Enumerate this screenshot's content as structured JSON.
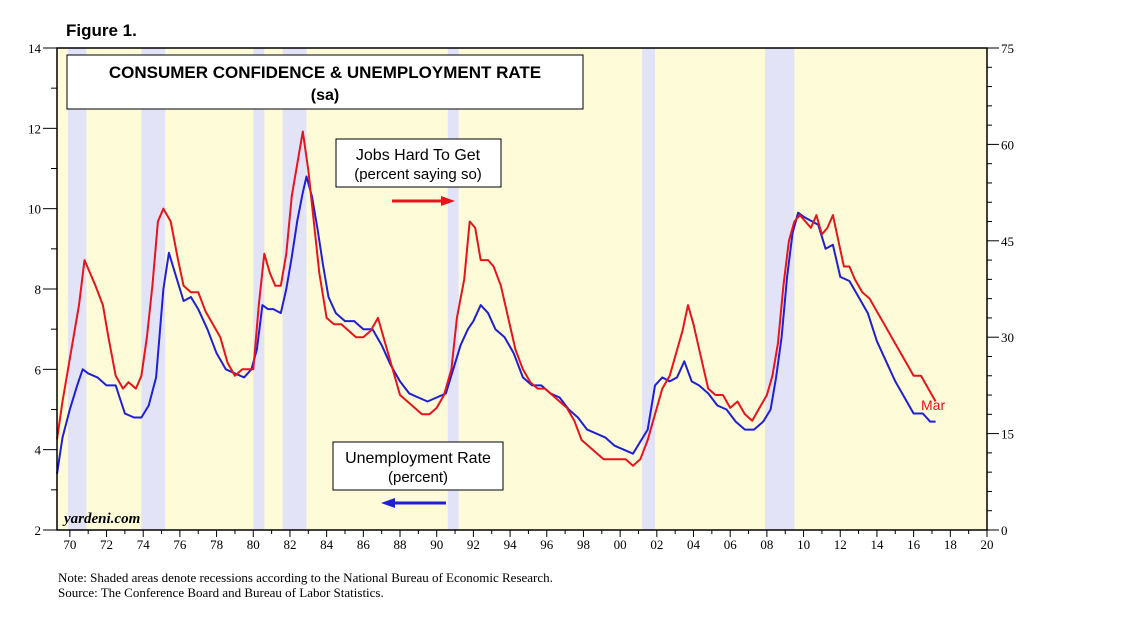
{
  "figure_label": "Figure 1.",
  "colors": {
    "unemployment": "#1f1fd6",
    "jobs_hard": "#e8141b",
    "recession": "#e3e3f8",
    "plot_bg": "#fdfbd8",
    "axis": "#000000"
  },
  "notes": {
    "line1": "Note: Shaded areas denote recessions according to the National Bureau of Economic Research.",
    "line2": "Source: The Conference Board and Bureau of Labor Statistics."
  },
  "chart_data": {
    "type": "line",
    "title": "CONSUMER CONFIDENCE & UNEMPLOYMENT RATE",
    "subtitle": "(sa)",
    "watermark": "yardeni.com",
    "xlim": [
      1969.3,
      2020
    ],
    "x_ticks": [
      1970,
      1972,
      1974,
      1976,
      1978,
      1980,
      1982,
      1984,
      1986,
      1988,
      1990,
      1992,
      1994,
      1996,
      1998,
      2000,
      2002,
      2004,
      2006,
      2008,
      2010,
      2012,
      2014,
      2016,
      2018,
      2020
    ],
    "x_tick_labels": [
      "70",
      "72",
      "74",
      "76",
      "78",
      "80",
      "82",
      "84",
      "86",
      "88",
      "90",
      "92",
      "94",
      "96",
      "98",
      "00",
      "02",
      "04",
      "06",
      "08",
      "10",
      "12",
      "14",
      "16",
      "18",
      "20"
    ],
    "left_axis": {
      "ylim": [
        2,
        14
      ],
      "ticks": [
        2,
        4,
        6,
        8,
        10,
        12,
        14
      ],
      "tick_labels": [
        "2",
        "4",
        "6",
        "8",
        "10",
        "12",
        "14"
      ]
    },
    "right_axis": {
      "ylim": [
        0,
        75
      ],
      "ticks": [
        0,
        15,
        30,
        45,
        60,
        75
      ],
      "tick_labels": [
        "0",
        "15",
        "30",
        "45",
        "60",
        "75"
      ]
    },
    "recessions": [
      [
        1969.9,
        1970.9
      ],
      [
        1973.9,
        1975.2
      ],
      [
        1980.0,
        1980.6
      ],
      [
        1981.6,
        1982.9
      ],
      [
        1990.6,
        1991.2
      ],
      [
        2001.2,
        2001.9
      ],
      [
        2007.9,
        2009.5
      ]
    ],
    "annotations": {
      "jobs_label_line1": "Jobs Hard To Get",
      "jobs_label_line2": "(percent saying so)",
      "unemp_label_line1": "Unemployment Rate",
      "unemp_label_line2": "(percent)",
      "end_label": "Mar"
    },
    "series": [
      {
        "name": "Unemployment Rate (percent)",
        "axis": "left",
        "x": [
          1969.3,
          1969.6,
          1970.0,
          1970.4,
          1970.7,
          1971.0,
          1971.5,
          1972.0,
          1972.5,
          1973.0,
          1973.5,
          1973.9,
          1974.3,
          1974.7,
          1975.1,
          1975.4,
          1975.8,
          1976.2,
          1976.6,
          1977.0,
          1977.5,
          1978.0,
          1978.5,
          1979.0,
          1979.5,
          1979.9,
          1980.2,
          1980.5,
          1980.8,
          1981.1,
          1981.5,
          1981.8,
          1982.1,
          1982.4,
          1982.7,
          1982.9,
          1983.2,
          1983.5,
          1983.8,
          1984.1,
          1984.5,
          1985.0,
          1985.5,
          1986.0,
          1986.5,
          1987.0,
          1987.5,
          1988.0,
          1988.5,
          1989.0,
          1989.5,
          1990.0,
          1990.5,
          1990.9,
          1991.3,
          1991.7,
          1992.0,
          1992.4,
          1992.8,
          1993.2,
          1993.7,
          1994.2,
          1994.7,
          1995.2,
          1995.7,
          1996.2,
          1996.7,
          1997.2,
          1997.7,
          1998.2,
          1998.7,
          1999.2,
          1999.7,
          2000.2,
          2000.7,
          2001.1,
          2001.5,
          2001.9,
          2002.3,
          2002.7,
          2003.1,
          2003.5,
          2003.9,
          2004.3,
          2004.8,
          2005.3,
          2005.8,
          2006.3,
          2006.8,
          2007.3,
          2007.8,
          2008.2,
          2008.5,
          2008.8,
          2009.1,
          2009.4,
          2009.7,
          2010.0,
          2010.4,
          2010.8,
          2011.2,
          2011.6,
          2012.0,
          2012.5,
          2013.0,
          2013.5,
          2014.0,
          2014.5,
          2015.0,
          2015.5,
          2016.0,
          2016.5,
          2016.9,
          2017.2
        ],
        "values": [
          3.4,
          4.3,
          5.0,
          5.6,
          6.0,
          5.9,
          5.8,
          5.6,
          5.6,
          4.9,
          4.8,
          4.8,
          5.1,
          5.8,
          8.0,
          8.9,
          8.3,
          7.7,
          7.8,
          7.5,
          7.0,
          6.4,
          6.0,
          5.9,
          5.8,
          6.0,
          6.5,
          7.6,
          7.5,
          7.5,
          7.4,
          8.0,
          8.8,
          9.7,
          10.4,
          10.8,
          10.3,
          9.5,
          8.6,
          7.8,
          7.4,
          7.2,
          7.2,
          7.0,
          7.0,
          6.6,
          6.1,
          5.7,
          5.4,
          5.3,
          5.2,
          5.3,
          5.4,
          6.0,
          6.6,
          7.0,
          7.2,
          7.6,
          7.4,
          7.0,
          6.8,
          6.4,
          5.8,
          5.6,
          5.6,
          5.4,
          5.3,
          5.0,
          4.8,
          4.5,
          4.4,
          4.3,
          4.1,
          4.0,
          3.9,
          4.2,
          4.5,
          5.6,
          5.8,
          5.7,
          5.8,
          6.2,
          5.7,
          5.6,
          5.4,
          5.1,
          5.0,
          4.7,
          4.5,
          4.5,
          4.7,
          5.0,
          5.8,
          6.8,
          8.3,
          9.4,
          9.9,
          9.8,
          9.7,
          9.6,
          9.0,
          9.1,
          8.3,
          8.2,
          7.8,
          7.4,
          6.7,
          6.2,
          5.7,
          5.3,
          4.9,
          4.9,
          4.7,
          4.7
        ]
      },
      {
        "name": "Jobs Hard To Get (percent saying so)",
        "axis": "right",
        "x": [
          1969.3,
          1969.6,
          1969.9,
          1970.2,
          1970.5,
          1970.8,
          1971.1,
          1971.4,
          1971.8,
          1972.1,
          1972.5,
          1972.9,
          1973.2,
          1973.6,
          1973.9,
          1974.2,
          1974.5,
          1974.8,
          1975.1,
          1975.5,
          1975.9,
          1976.2,
          1976.6,
          1977.0,
          1977.4,
          1977.8,
          1978.2,
          1978.6,
          1979.0,
          1979.4,
          1979.8,
          1980.0,
          1980.3,
          1980.6,
          1980.9,
          1981.2,
          1981.5,
          1981.8,
          1982.1,
          1982.4,
          1982.7,
          1983.0,
          1983.3,
          1983.6,
          1984.0,
          1984.4,
          1984.8,
          1985.2,
          1985.6,
          1986.0,
          1986.4,
          1986.8,
          1987.2,
          1987.6,
          1988.0,
          1988.4,
          1988.8,
          1989.2,
          1989.6,
          1990.0,
          1990.4,
          1990.8,
          1991.1,
          1991.5,
          1991.8,
          1992.1,
          1992.4,
          1992.8,
          1993.1,
          1993.5,
          1993.9,
          1994.3,
          1994.7,
          1995.1,
          1995.5,
          1995.9,
          1996.3,
          1996.7,
          1997.1,
          1997.5,
          1997.9,
          1998.3,
          1998.7,
          1999.1,
          1999.5,
          1999.9,
          2000.3,
          2000.7,
          2001.1,
          2001.5,
          2001.9,
          2002.3,
          2002.7,
          2003.1,
          2003.4,
          2003.7,
          2004.0,
          2004.4,
          2004.8,
          2005.2,
          2005.6,
          2006.0,
          2006.4,
          2006.8,
          2007.2,
          2007.6,
          2008.0,
          2008.3,
          2008.6,
          2008.9,
          2009.2,
          2009.5,
          2009.8,
          2010.1,
          2010.4,
          2010.7,
          2011.0,
          2011.3,
          2011.6,
          2011.9,
          2012.2,
          2012.5,
          2012.8,
          2013.2,
          2013.6,
          2014.0,
          2014.4,
          2014.8,
          2015.2,
          2015.6,
          2016.0,
          2016.4,
          2016.8,
          2017.2
        ],
        "values": [
          14.1,
          20.0,
          25.0,
          30.0,
          35.0,
          42.0,
          40.0,
          38.0,
          35.0,
          30.0,
          24.0,
          22.0,
          23.0,
          22.0,
          24.0,
          30.0,
          38.0,
          48.0,
          50.0,
          48.0,
          42.0,
          38.0,
          37.0,
          37.0,
          34.0,
          32.0,
          30.0,
          26.0,
          24.0,
          25.0,
          25.0,
          25.0,
          35.0,
          43.0,
          40.0,
          38.0,
          38.0,
          43.0,
          52.0,
          57.0,
          62.0,
          56.0,
          48.0,
          40.0,
          33.0,
          32.0,
          32.0,
          31.0,
          30.0,
          30.0,
          31.0,
          33.0,
          29.0,
          25.0,
          21.0,
          20.0,
          19.0,
          18.0,
          18.0,
          19.0,
          21.0,
          25.0,
          33.0,
          39.0,
          48.0,
          47.0,
          42.0,
          42.0,
          41.0,
          38.0,
          33.0,
          28.0,
          25.0,
          23.0,
          22.0,
          22.0,
          21.0,
          20.0,
          19.0,
          17.0,
          14.0,
          13.0,
          12.0,
          11.0,
          11.0,
          11.0,
          11.0,
          10.0,
          11.0,
          14.0,
          18.0,
          22.0,
          24.0,
          28.0,
          31.0,
          35.0,
          32.0,
          27.0,
          22.0,
          21.0,
          21.0,
          19.0,
          20.0,
          18.0,
          17.0,
          19.0,
          21.0,
          24.0,
          29.0,
          38.0,
          45.0,
          48.0,
          49.0,
          48.0,
          47.0,
          49.0,
          46.0,
          47.0,
          49.0,
          45.0,
          41.0,
          41.0,
          39.0,
          37.0,
          36.0,
          34.0,
          32.0,
          30.0,
          28.0,
          26.0,
          24.0,
          24.0,
          22.0,
          20.0
        ]
      }
    ]
  }
}
